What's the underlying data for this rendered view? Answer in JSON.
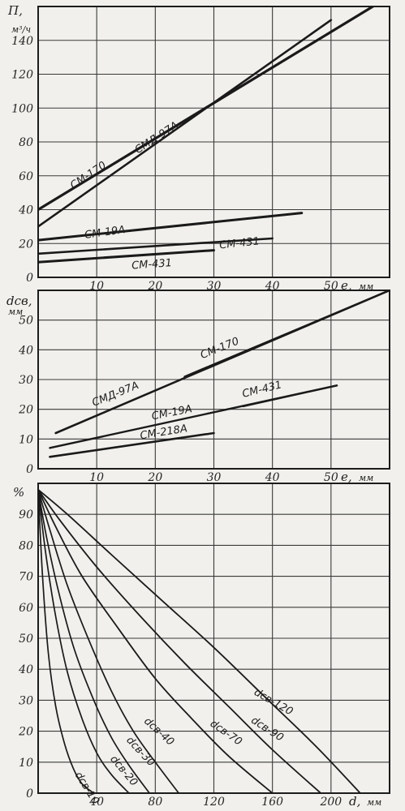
{
  "chart_data": [
    {
      "type": "line",
      "ylabel": "П,",
      "yunit": "м³/ч",
      "xlabel": "e,",
      "xunit": "мм",
      "xlim": [
        0,
        60
      ],
      "ylim": [
        0,
        160
      ],
      "x_ticks": [
        {
          "v": 10,
          "t": "10"
        },
        {
          "v": 20,
          "t": "20"
        },
        {
          "v": 30,
          "t": "30"
        },
        {
          "v": 40,
          "t": "40"
        },
        {
          "v": 50,
          "t": "50"
        }
      ],
      "y_ticks": [
        {
          "v": 0,
          "t": "0"
        },
        {
          "v": 20,
          "t": "20"
        },
        {
          "v": 40,
          "t": "40"
        },
        {
          "v": 60,
          "t": "60"
        },
        {
          "v": 80,
          "t": "80"
        },
        {
          "v": 100,
          "t": "100"
        },
        {
          "v": 120,
          "t": "120"
        },
        {
          "v": 140,
          "t": "140"
        }
      ],
      "grid": true,
      "series": [
        {
          "name": "СМД-97А",
          "x": [
            0,
            60
          ],
          "y": [
            40,
            166
          ],
          "label_at": {
            "x": 17,
            "y": 73,
            "angle": -33
          }
        },
        {
          "name": "СМ-170",
          "x": [
            0,
            50
          ],
          "y": [
            30,
            152
          ],
          "label_at": {
            "x": 6,
            "y": 52,
            "angle": -34
          }
        },
        {
          "name": "СМ-19А",
          "x": [
            0,
            45
          ],
          "y": [
            22,
            38
          ],
          "label_at": {
            "x": 8,
            "y": 23,
            "angle": -8
          }
        },
        {
          "name": "СМ-431",
          "x": [
            0,
            40
          ],
          "y": [
            14,
            23
          ],
          "label_at": {
            "x": 31,
            "y": 17,
            "angle": -6
          }
        },
        {
          "name": "СМ-431",
          "x": [
            0,
            30
          ],
          "y": [
            9,
            16
          ],
          "label_at": {
            "x": 16,
            "y": 5,
            "angle": -4
          }
        }
      ]
    },
    {
      "type": "line",
      "ylabel": "dсв,",
      "yunit": "мм",
      "xlabel": "e,",
      "xunit": "мм",
      "xlim": [
        0,
        60
      ],
      "ylim": [
        0,
        60
      ],
      "x_ticks": [
        {
          "v": 10,
          "t": "10"
        },
        {
          "v": 20,
          "t": "20"
        },
        {
          "v": 30,
          "t": "30"
        },
        {
          "v": 40,
          "t": "40"
        },
        {
          "v": 50,
          "t": "50"
        }
      ],
      "y_ticks": [
        {
          "v": 0,
          "t": "0"
        },
        {
          "v": 10,
          "t": "10"
        },
        {
          "v": 20,
          "t": "20"
        },
        {
          "v": 30,
          "t": "30"
        },
        {
          "v": 40,
          "t": "40"
        },
        {
          "v": 50,
          "t": "50"
        }
      ],
      "grid": true,
      "series": [
        {
          "name": "СМД-97А",
          "x": [
            3,
            60
          ],
          "y": [
            12,
            60
          ],
          "label_at": {
            "x": 9.5,
            "y": 21,
            "angle": -22
          }
        },
        {
          "name": "СМ-170",
          "x": [
            25,
            60
          ],
          "y": [
            31,
            60
          ],
          "label_at": {
            "x": 28,
            "y": 37,
            "angle": -22
          }
        },
        {
          "name": "СМ-19А",
          "x": [
            2,
            51
          ],
          "y": [
            7,
            28
          ],
          "label_at": {
            "x": 19.5,
            "y": 16.5,
            "angle": -11
          }
        },
        {
          "name": "СМ-431",
          "x": [
            35,
            51
          ],
          "y": [
            21,
            28
          ],
          "label_at": {
            "x": 35,
            "y": 24,
            "angle": -14
          }
        },
        {
          "name": "СМ-218А",
          "x": [
            2,
            30
          ],
          "y": [
            4,
            12
          ],
          "label_at": {
            "x": 17.5,
            "y": 10,
            "angle": -9
          }
        }
      ]
    },
    {
      "type": "line",
      "ylabel": "%",
      "xlabel": "d,",
      "xunit": "мм",
      "xlim": [
        0,
        240
      ],
      "ylim": [
        0,
        100
      ],
      "x_ticks": [
        {
          "v": 40,
          "t": "40"
        },
        {
          "v": 80,
          "t": "80"
        },
        {
          "v": 120,
          "t": "120"
        },
        {
          "v": 160,
          "t": "160"
        },
        {
          "v": 200,
          "t": "200"
        }
      ],
      "y_ticks": [
        {
          "v": 0,
          "t": "0"
        },
        {
          "v": 10,
          "t": "10"
        },
        {
          "v": 20,
          "t": "20"
        },
        {
          "v": 30,
          "t": "30"
        },
        {
          "v": 40,
          "t": "40"
        },
        {
          "v": 50,
          "t": "50"
        },
        {
          "v": 60,
          "t": "60"
        },
        {
          "v": 70,
          "t": "70"
        },
        {
          "v": 80,
          "t": "80"
        },
        {
          "v": 90,
          "t": "90"
        }
      ],
      "grid": true,
      "series": [
        {
          "name": "dсв-10",
          "x": [
            0,
            3,
            7,
            12,
            18,
            24,
            30,
            38
          ],
          "y": [
            98,
            70,
            45,
            28,
            16,
            8,
            3,
            0
          ],
          "label_at": {
            "x": 25,
            "y": 6,
            "angle": 58
          }
        },
        {
          "name": "dсв-20",
          "x": [
            0,
            5,
            12,
            20,
            30,
            40,
            50,
            62
          ],
          "y": [
            98,
            78,
            57,
            39,
            24,
            13,
            6,
            0
          ],
          "label_at": {
            "x": 49,
            "y": 11,
            "angle": 50
          }
        },
        {
          "name": "dсв-30",
          "x": [
            0,
            6,
            15,
            25,
            38,
            50,
            62,
            76
          ],
          "y": [
            98,
            82,
            63,
            46,
            30,
            18,
            9,
            0
          ],
          "label_at": {
            "x": 60,
            "y": 17,
            "angle": 47
          }
        },
        {
          "name": "dсв-40",
          "x": [
            0,
            8,
            20,
            35,
            50,
            65,
            80,
            96
          ],
          "y": [
            98,
            85,
            67,
            49,
            33,
            20,
            10,
            0
          ],
          "label_at": {
            "x": 72,
            "y": 23,
            "angle": 42
          }
        },
        {
          "name": "dсв-70",
          "x": [
            0,
            12,
            30,
            55,
            80,
            105,
            130,
            160
          ],
          "y": [
            98,
            86,
            70,
            53,
            37,
            24,
            12,
            0
          ],
          "label_at": {
            "x": 117,
            "y": 22,
            "angle": 35
          }
        },
        {
          "name": "dсв-90",
          "x": [
            0,
            15,
            40,
            70,
            100,
            130,
            160,
            193
          ],
          "y": [
            98,
            88,
            73,
            57,
            42,
            28,
            14,
            0
          ],
          "label_at": {
            "x": 145,
            "y": 23,
            "angle": 33
          }
        },
        {
          "name": "dсв-120",
          "x": [
            0,
            20,
            50,
            85,
            120,
            155,
            190,
            220
          ],
          "y": [
            98,
            90,
            77,
            62,
            47,
            31,
            15,
            0
          ],
          "label_at": {
            "x": 147,
            "y": 32,
            "angle": 30
          }
        }
      ]
    }
  ]
}
